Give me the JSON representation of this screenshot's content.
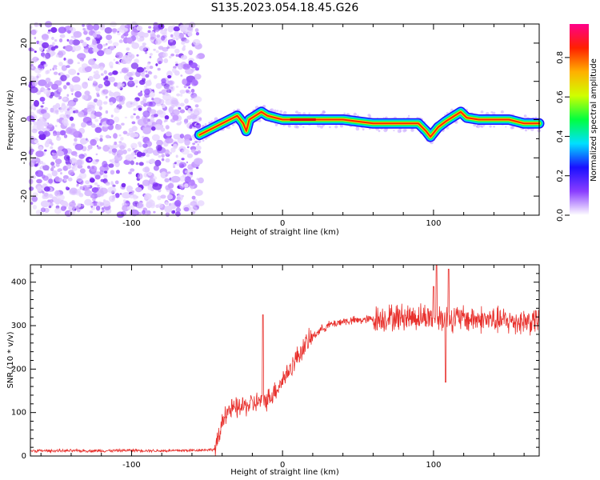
{
  "title": "S135.2023.054.18.45.G26",
  "chart_data": [
    {
      "type": "heatmap",
      "xlabel": "Height of straight line (km)",
      "ylabel": "Frequency (Hz)",
      "xlim": [
        -167,
        170
      ],
      "ylim": [
        -25,
        25
      ],
      "xticks": [
        -100,
        0,
        100
      ],
      "yticks": [
        -20,
        -10,
        0,
        10,
        20
      ],
      "noise_region_x": [
        -167,
        -54
      ],
      "ridge": {
        "x": [
          -55,
          -50,
          -45,
          -40,
          -35,
          -30,
          -26,
          -24,
          -22,
          -18,
          -14,
          -10,
          -5,
          0,
          10,
          20,
          30,
          40,
          50,
          60,
          70,
          80,
          90,
          95,
          98,
          100,
          103,
          108,
          112,
          118,
          122,
          130,
          140,
          150,
          160,
          170
        ],
        "freq": [
          -4,
          -3,
          -2,
          -1,
          0,
          1,
          -1,
          -3,
          0,
          1,
          2,
          1,
          0.5,
          0,
          0,
          0,
          0,
          0,
          -0.5,
          -1,
          -1,
          -1,
          -1,
          -3,
          -4.5,
          -3.5,
          -2,
          -0.5,
          0.5,
          2,
          0.5,
          0,
          0,
          0,
          -1,
          -1
        ]
      },
      "colorbar": {
        "label": "Normalized spectral amplitude",
        "range": [
          0.0,
          1.0
        ],
        "ticks": [
          0.0,
          0.2,
          0.4,
          0.6,
          0.8
        ],
        "tick_labels": [
          "0.0",
          "0.2",
          "0.4",
          "0.6",
          "0.8"
        ],
        "colors": [
          "#ffffff",
          "#8a3dff",
          "#1a10ff",
          "#00e0ff",
          "#00ff40",
          "#d0ff00",
          "#ffb000",
          "#ff2000",
          "#ff008a"
        ]
      }
    },
    {
      "type": "line",
      "xlabel": "Height of straight line (km)",
      "ylabel": "SNR (10 * v/v)",
      "xlim": [
        -167,
        170
      ],
      "ylim": [
        0,
        440
      ],
      "xticks": [
        -100,
        0,
        100
      ],
      "yticks": [
        0,
        100,
        200,
        300,
        400
      ],
      "color": "#e8302c",
      "series": [
        {
          "x": [
            -167,
            -150,
            -120,
            -100,
            -80,
            -60,
            -45,
            -42,
            -40,
            -38,
            -35,
            -30,
            -25,
            -20,
            -15,
            -12,
            -10,
            -5,
            0,
            5,
            10,
            15,
            20,
            25,
            30,
            40,
            50,
            60,
            70,
            80,
            90,
            100,
            110,
            120,
            130,
            140,
            150,
            160,
            170
          ],
          "values": [
            12,
            12,
            12,
            13,
            12,
            13,
            15,
            40,
            80,
            100,
            105,
            110,
            115,
            120,
            125,
            130,
            130,
            150,
            175,
            200,
            230,
            255,
            275,
            290,
            300,
            310,
            312,
            315,
            318,
            320,
            320,
            320,
            318,
            316,
            315,
            312,
            310,
            310,
            312
          ]
        }
      ],
      "spikes": [
        {
          "x": -13,
          "y": 325
        },
        {
          "x": 100,
          "y": 390
        },
        {
          "x": 102,
          "y": 440
        },
        {
          "x": 110,
          "y": 430
        },
        {
          "x": 108,
          "y": 170
        }
      ]
    }
  ]
}
